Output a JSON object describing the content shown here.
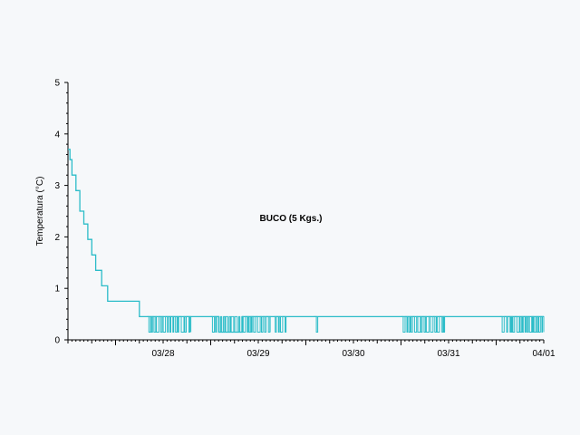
{
  "chart_data": {
    "type": "line",
    "title": "BUCO (5 Kgs.)",
    "xlabel": "",
    "ylabel": "Temperatura (°C)",
    "ylim": [
      0,
      5
    ],
    "xlim": [
      "03/27 12:00",
      "04/01 12:00"
    ],
    "y_ticks": [
      0,
      1,
      2,
      3,
      4,
      5
    ],
    "x_ticks": [
      "03/28",
      "03/29",
      "03/30",
      "03/31",
      "04/01"
    ],
    "grid": false,
    "line_color": "#2bbcc8",
    "series": [
      {
        "name": "",
        "points": [
          [
            "03/27 12:00",
            3.7
          ],
          [
            "03/27 12:30",
            3.5
          ],
          [
            "03/27 13:00",
            3.2
          ],
          [
            "03/27 14:00",
            2.9
          ],
          [
            "03/27 15:00",
            2.5
          ],
          [
            "03/27 16:00",
            2.25
          ],
          [
            "03/27 17:00",
            1.95
          ],
          [
            "03/27 18:00",
            1.65
          ],
          [
            "03/27 19:00",
            1.35
          ],
          [
            "03/27 20:30",
            1.05
          ],
          [
            "03/27 22:00",
            0.75
          ],
          [
            "03/28 06:00",
            0.45
          ],
          [
            "03/28 20:00",
            0.45
          ],
          [
            "03/29 02:00",
            0.15
          ],
          [
            "03/29 08:00",
            0.45
          ],
          [
            "04/01 12:00",
            0.45
          ]
        ],
        "oscillation_ranges": [
          {
            "from": "03/28 08:00",
            "to": "03/28 19:00",
            "low": 0.15,
            "high": 0.45
          },
          {
            "from": "03/29 00:00",
            "to": "03/29 15:00",
            "low": 0.15,
            "high": 0.45
          },
          {
            "from": "03/29 16:00",
            "to": "03/29 19:00",
            "low": 0.15,
            "high": 0.45
          },
          {
            "from": "03/30 02:00",
            "to": "03/30 03:00",
            "low": 0.15,
            "high": 0.45
          },
          {
            "from": "03/31 00:00",
            "to": "03/31 11:00",
            "low": 0.15,
            "high": 0.45
          },
          {
            "from": "04/01 01:00",
            "to": "04/01 12:00",
            "low": 0.15,
            "high": 0.45
          }
        ]
      }
    ]
  }
}
